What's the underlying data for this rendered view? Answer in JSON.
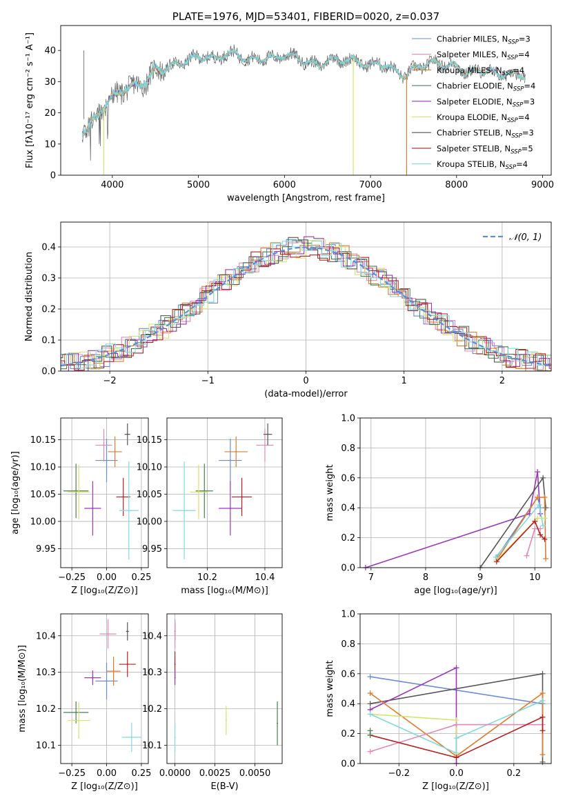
{
  "colors": {
    "chabrier_miles": "#6a8bd8",
    "salpeter_miles": "#e088b8",
    "kroupa_miles": "#e07b2a",
    "chabrier_elodie": "#4a7f50",
    "salpeter_elodie": "#9a35b8",
    "kroupa_elodie": "#d6e36a",
    "chabrier_stelib": "#555555",
    "salpeter_stelib": "#b81e1e",
    "kroupa_stelib": "#7fd9dd",
    "normal_fit": "#5b8ed6",
    "grid": "#b0b0b0"
  },
  "chart_data": [
    {
      "id": "spectrum",
      "type": "line",
      "title": "PLATE=1976, MJD=53401, FIBERID=0020, z=0.037",
      "xlabel": "wavelength [Angstrom, rest frame]",
      "ylabel": "Flux [fλ10⁻¹⁷ erg cm⁻² s⁻¹ A⁻¹]",
      "xlim": [
        3400,
        9100
      ],
      "ylim": [
        0,
        48
      ],
      "xticks": [
        4000,
        5000,
        6000,
        7000,
        8000,
        9000
      ],
      "yticks": [
        0,
        10,
        20,
        30,
        40
      ],
      "legend": "top-right",
      "grid": false,
      "continuum": [
        [
          3650,
          14
        ],
        [
          3700,
          15
        ],
        [
          3800,
          18
        ],
        [
          3900,
          22
        ],
        [
          4000,
          25
        ],
        [
          4100,
          27
        ],
        [
          4200,
          28
        ],
        [
          4300,
          29
        ],
        [
          4400,
          30
        ],
        [
          4500,
          34
        ],
        [
          4600,
          34
        ],
        [
          4700,
          35
        ],
        [
          4800,
          36
        ],
        [
          4900,
          37
        ],
        [
          5000,
          38
        ],
        [
          5100,
          38
        ],
        [
          5200,
          37
        ],
        [
          5300,
          39
        ],
        [
          5400,
          39
        ],
        [
          5500,
          38
        ],
        [
          5600,
          37
        ],
        [
          5700,
          37
        ],
        [
          5800,
          38
        ],
        [
          5900,
          37
        ],
        [
          6000,
          39
        ],
        [
          6100,
          38
        ],
        [
          6200,
          37
        ],
        [
          6300,
          36
        ],
        [
          6400,
          35
        ],
        [
          6500,
          37
        ],
        [
          6600,
          37
        ],
        [
          6700,
          37
        ],
        [
          6800,
          37
        ],
        [
          6900,
          36
        ],
        [
          7000,
          35
        ],
        [
          7100,
          36
        ],
        [
          7200,
          35
        ],
        [
          7300,
          33
        ],
        [
          7400,
          32
        ],
        [
          7500,
          34
        ],
        [
          7600,
          35
        ],
        [
          7700,
          36
        ],
        [
          7800,
          36
        ],
        [
          7900,
          35
        ],
        [
          8000,
          35
        ],
        [
          8100,
          33
        ],
        [
          8200,
          33
        ],
        [
          8300,
          34
        ],
        [
          8400,
          33
        ],
        [
          8500,
          32
        ],
        [
          8600,
          33
        ],
        [
          8700,
          32
        ],
        [
          8800,
          32
        ]
      ],
      "series": [
        {
          "name": "Chabrier MILES, N",
          "ssp": "SSP",
          "n": "=3",
          "color_key": "chabrier_miles"
        },
        {
          "name": "Salpeter MILES, N",
          "ssp": "SSP",
          "n": "=4",
          "color_key": "salpeter_miles"
        },
        {
          "name": "Kroupa MILES, N",
          "ssp": "SSP",
          "n": "=4",
          "color_key": "kroupa_miles"
        },
        {
          "name": "Chabrier ELODIE, N",
          "ssp": "SSP",
          "n": "=4",
          "color_key": "chabrier_elodie"
        },
        {
          "name": "Salpeter ELODIE, N",
          "ssp": "SSP",
          "n": "=3",
          "color_key": "salpeter_elodie"
        },
        {
          "name": "Kroupa ELODIE, N",
          "ssp": "SSP",
          "n": "=4",
          "color_key": "kroupa_elodie"
        },
        {
          "name": "Chabrier STELIB, N",
          "ssp": "SSP",
          "n": "=3",
          "color_key": "chabrier_stelib"
        },
        {
          "name": "Salpeter STELIB, N",
          "ssp": "SSP",
          "n": "=5",
          "color_key": "salpeter_stelib"
        },
        {
          "name": "Kroupa STELIB, N",
          "ssp": "SSP",
          "n": "=4",
          "color_key": "kroupa_stelib"
        }
      ],
      "dropouts": [
        {
          "color_key": "kroupa_elodie",
          "x": 3900
        },
        {
          "color_key": "kroupa_elodie",
          "x": 6800
        },
        {
          "color_key": "kroupa_miles",
          "x": 7420
        }
      ]
    },
    {
      "id": "residuals",
      "type": "line",
      "xlabel": "(data-model)/error",
      "ylabel": "Normed distribution",
      "xlim": [
        -2.5,
        2.5
      ],
      "ylim": [
        0,
        0.48
      ],
      "xticks": [
        -2,
        -1,
        0,
        1,
        2
      ],
      "yticks": [
        0.0,
        0.1,
        0.2,
        0.3,
        0.4
      ],
      "grid": true,
      "legend": "top-right",
      "fit_label": "𝒩(0, 1)"
    },
    {
      "id": "age_vs_Z",
      "type": "scatter",
      "xlabel": "Z [log₁₀(Z/Z⊙)]",
      "ylabel": "age  [log₁₀(age/yr)]",
      "xlim": [
        -0.33,
        0.3
      ],
      "ylim": [
        9.915,
        10.19
      ],
      "xticks": [
        -0.25,
        0.0,
        0.25
      ],
      "yticks": [
        9.95,
        10.0,
        10.05,
        10.1,
        10.15
      ],
      "grid": true,
      "points": [
        {
          "color_key": "chabrier_miles",
          "x": 0.0,
          "y": 10.112,
          "xerr": 0.08,
          "yerr": 0.04
        },
        {
          "color_key": "salpeter_miles",
          "x": -0.02,
          "y": 10.14,
          "xerr": 0.06,
          "yerr": 0.03
        },
        {
          "color_key": "kroupa_miles",
          "x": 0.06,
          "y": 10.128,
          "xerr": 0.05,
          "yerr": 0.028
        },
        {
          "color_key": "chabrier_elodie",
          "x": -0.22,
          "y": 10.056,
          "xerr": 0.09,
          "yerr": 0.05
        },
        {
          "color_key": "salpeter_elodie",
          "x": -0.1,
          "y": 10.024,
          "xerr": 0.06,
          "yerr": 0.05
        },
        {
          "color_key": "kroupa_elodie",
          "x": -0.2,
          "y": 10.054,
          "xerr": 0.08,
          "yerr": 0.05
        },
        {
          "color_key": "chabrier_stelib",
          "x": 0.15,
          "y": 10.16,
          "xerr": 0.02,
          "yerr": 0.02
        },
        {
          "color_key": "salpeter_stelib",
          "x": 0.12,
          "y": 10.045,
          "xerr": 0.05,
          "yerr": 0.035
        },
        {
          "color_key": "kroupa_stelib",
          "x": 0.16,
          "y": 10.02,
          "xerr": 0.07,
          "yerr": 0.09
        }
      ]
    },
    {
      "id": "age_vs_mass",
      "type": "scatter",
      "xlabel": "mass [log₁₀(M/M⊙)]",
      "xlim": [
        10.06,
        10.46
      ],
      "ylim": [
        9.915,
        10.19
      ],
      "xticks": [
        10.2,
        10.4
      ],
      "yticks": [
        9.95,
        10.0,
        10.05,
        10.1,
        10.15
      ],
      "grid": true,
      "points": [
        {
          "color_key": "chabrier_miles",
          "x": 10.28,
          "y": 10.112,
          "xerr": 0.04,
          "yerr": 0.04
        },
        {
          "color_key": "salpeter_miles",
          "x": 10.4,
          "y": 10.14,
          "xerr": 0.03,
          "yerr": 0.03
        },
        {
          "color_key": "kroupa_miles",
          "x": 10.3,
          "y": 10.128,
          "xerr": 0.04,
          "yerr": 0.028
        },
        {
          "color_key": "chabrier_elodie",
          "x": 10.19,
          "y": 10.056,
          "xerr": 0.03,
          "yerr": 0.05
        },
        {
          "color_key": "salpeter_elodie",
          "x": 10.28,
          "y": 10.024,
          "xerr": 0.04,
          "yerr": 0.05
        },
        {
          "color_key": "kroupa_elodie",
          "x": 10.17,
          "y": 10.054,
          "xerr": 0.03,
          "yerr": 0.05
        },
        {
          "color_key": "chabrier_stelib",
          "x": 10.41,
          "y": 10.16,
          "xerr": 0.015,
          "yerr": 0.02
        },
        {
          "color_key": "salpeter_stelib",
          "x": 10.32,
          "y": 10.045,
          "xerr": 0.035,
          "yerr": 0.035
        },
        {
          "color_key": "kroupa_stelib",
          "x": 10.12,
          "y": 10.02,
          "xerr": 0.04,
          "yerr": 0.09
        }
      ]
    },
    {
      "id": "weight_vs_age",
      "type": "line",
      "xlabel": "age  [log₁₀(age/yr)]",
      "ylabel": "mass weight",
      "xlim": [
        6.8,
        10.3
      ],
      "ylim": [
        0,
        1
      ],
      "xticks": [
        7,
        8,
        9,
        10
      ],
      "yticks": [
        0.0,
        0.2,
        0.4,
        0.6,
        0.8,
        1.0
      ],
      "grid": true,
      "series": [
        {
          "color_key": "salpeter_elodie",
          "x": [
            6.9,
            9.9,
            10.05,
            10.1
          ],
          "y": [
            0.0,
            0.36,
            0.64,
            0.36
          ]
        },
        {
          "color_key": "chabrier_stelib",
          "x": [
            9.0,
            10.15,
            10.2
          ],
          "y": [
            0.0,
            0.6,
            0.4
          ]
        },
        {
          "color_key": "chabrier_miles",
          "x": [
            9.3,
            10.05,
            10.1
          ],
          "y": [
            0.07,
            0.47,
            0.4
          ]
        },
        {
          "color_key": "kroupa_miles",
          "x": [
            9.3,
            10.05,
            10.18,
            10.2
          ],
          "y": [
            0.05,
            0.47,
            0.47,
            0.06
          ]
        },
        {
          "color_key": "kroupa_stelib",
          "x": [
            9.28,
            10.08,
            10.15
          ],
          "y": [
            0.07,
            0.42,
            0.28
          ]
        },
        {
          "color_key": "kroupa_elodie",
          "x": [
            9.3,
            10.05,
            10.18
          ],
          "y": [
            0.05,
            0.33,
            0.33
          ]
        },
        {
          "color_key": "salpeter_miles",
          "x": [
            9.85,
            10.0,
            10.1
          ],
          "y": [
            0.08,
            0.26,
            0.26
          ]
        },
        {
          "color_key": "salpeter_stelib",
          "x": [
            9.3,
            10.0,
            10.1,
            10.18
          ],
          "y": [
            0.04,
            0.31,
            0.22,
            0.19
          ]
        }
      ]
    },
    {
      "id": "mass_vs_Z",
      "type": "scatter",
      "xlabel": "Z [log₁₀(Z/Z⊙)]",
      "ylabel": "mass [log₁₀(M/M⊙)]",
      "xlim": [
        -0.33,
        0.3
      ],
      "ylim": [
        10.05,
        10.46
      ],
      "xticks": [
        -0.25,
        0.0,
        0.25
      ],
      "yticks": [
        10.1,
        10.2,
        10.3,
        10.4
      ],
      "grid": true,
      "points": [
        {
          "color_key": "chabrier_miles",
          "x": -0.0,
          "y": 10.276,
          "xerr": 0.08,
          "yerr": 0.05
        },
        {
          "color_key": "salpeter_miles",
          "x": 0.01,
          "y": 10.405,
          "xerr": 0.06,
          "yerr": 0.04
        },
        {
          "color_key": "kroupa_miles",
          "x": 0.05,
          "y": 10.303,
          "xerr": 0.05,
          "yerr": 0.04
        },
        {
          "color_key": "chabrier_elodie",
          "x": -0.22,
          "y": 10.19,
          "xerr": 0.09,
          "yerr": 0.03
        },
        {
          "color_key": "salpeter_elodie",
          "x": -0.1,
          "y": 10.285,
          "xerr": 0.06,
          "yerr": 0.02
        },
        {
          "color_key": "kroupa_elodie",
          "x": -0.2,
          "y": 10.168,
          "xerr": 0.08,
          "yerr": 0.05
        },
        {
          "color_key": "chabrier_stelib",
          "x": 0.15,
          "y": 10.412,
          "xerr": 0.01,
          "yerr": 0.025
        },
        {
          "color_key": "salpeter_stelib",
          "x": 0.15,
          "y": 10.322,
          "xerr": 0.06,
          "yerr": 0.035
        },
        {
          "color_key": "kroupa_stelib",
          "x": 0.18,
          "y": 10.122,
          "xerr": 0.07,
          "yerr": 0.04
        }
      ]
    },
    {
      "id": "mass_vs_ebv",
      "type": "scatter",
      "xlabel": "E(B-V)",
      "xlim": [
        -0.0005,
        0.0067
      ],
      "ylim": [
        10.05,
        10.46
      ],
      "xticks": [
        0.0,
        0.0025,
        0.005
      ],
      "xticklabels": [
        "0.0000",
        "0.0025",
        "0.0050"
      ],
      "yticks": [
        10.1,
        10.2,
        10.3,
        10.4
      ],
      "grid": true,
      "points": [
        {
          "color_key": "chabrier_stelib",
          "x": 0.0,
          "y": 10.412,
          "xerr": 0.0,
          "yerr": 0.025
        },
        {
          "color_key": "salpeter_miles",
          "x": 0.0,
          "y": 10.405,
          "xerr": 0.0,
          "yerr": 0.04
        },
        {
          "color_key": "salpeter_stelib",
          "x": 0.0,
          "y": 10.322,
          "xerr": 0.0,
          "yerr": 0.035
        },
        {
          "color_key": "salpeter_elodie",
          "x": 0.0,
          "y": 10.285,
          "xerr": 0.0,
          "yerr": 0.02
        },
        {
          "color_key": "kroupa_stelib",
          "x": 0.0,
          "y": 10.122,
          "xerr": 0.0,
          "yerr": 0.04
        },
        {
          "color_key": "kroupa_elodie",
          "x": 0.0032,
          "y": 10.168,
          "xerr": 0.0,
          "yerr": 0.04
        },
        {
          "color_key": "chabrier_elodie",
          "x": 0.0064,
          "y": 10.16,
          "xerr": 0.0,
          "yerr": 0.06
        }
      ]
    },
    {
      "id": "weight_vs_Z",
      "type": "line",
      "xlabel": "Z [log₁₀(Z/Z⊙)]",
      "ylabel": "mass weight",
      "xlim": [
        -0.335,
        0.33
      ],
      "ylim": [
        0,
        1
      ],
      "xticks": [
        -0.2,
        0.0,
        0.2
      ],
      "yticks": [
        0.0,
        0.2,
        0.4,
        0.6,
        0.8,
        1.0
      ],
      "grid": true,
      "series": [
        {
          "color_key": "chabrier_miles",
          "x": [
            -0.3,
            0.3
          ],
          "y": [
            0.58,
            0.4
          ]
        },
        {
          "color_key": "chabrier_stelib",
          "x": [
            -0.3,
            0.3,
            0.3
          ],
          "y": [
            0.4,
            0.6,
            0.01
          ]
        },
        {
          "color_key": "salpeter_elodie",
          "x": [
            -0.3,
            0.0,
            0.0
          ],
          "y": [
            0.36,
            0.64,
            0.0
          ]
        },
        {
          "color_key": "kroupa_miles",
          "x": [
            -0.3,
            0.0,
            0.3,
            0.3
          ],
          "y": [
            0.47,
            0.05,
            0.47,
            0.06
          ]
        },
        {
          "color_key": "kroupa_elodie",
          "x": [
            -0.3,
            0.0,
            0.0
          ],
          "y": [
            0.33,
            0.29,
            0.05
          ]
        },
        {
          "color_key": "kroupa_stelib",
          "x": [
            -0.3,
            0.0,
            0.0,
            0.3
          ],
          "y": [
            0.33,
            0.07,
            0.17,
            0.42
          ]
        },
        {
          "color_key": "salpeter_miles",
          "x": [
            -0.3,
            0.0,
            0.3
          ],
          "y": [
            0.08,
            0.26,
            0.26
          ]
        },
        {
          "color_key": "salpeter_stelib",
          "x": [
            -0.3,
            0.0,
            0.3,
            0.3
          ],
          "y": [
            0.19,
            0.04,
            0.31,
            0.22
          ]
        },
        {
          "color_key": "chabrier_elodie",
          "x": [
            -0.3,
            -0.3
          ],
          "y": [
            0.19,
            0.22
          ]
        }
      ]
    }
  ]
}
